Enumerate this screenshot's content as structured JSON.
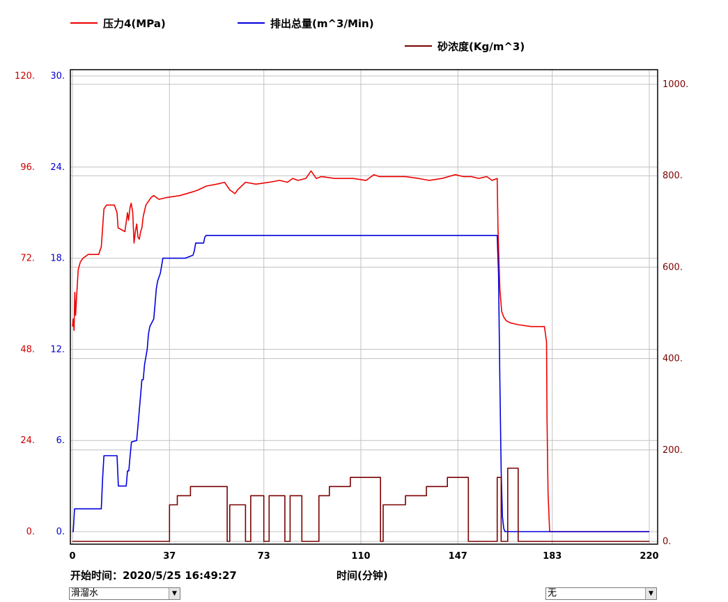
{
  "colors": {
    "pressure": "#ee0000",
    "flow": "#0000dd",
    "sand": "#7a0000",
    "grid": "#c0c0c0",
    "frame": "#000000"
  },
  "legend": {
    "pressure": "压力4(MPa)",
    "flow": "排出总量(m^3/Min)",
    "sand": "砂浓度(Kg/m^3)"
  },
  "info": {
    "start_time": "开始时间：2020/5/25 16:49:27",
    "x_axis_title": "时间(分钟)"
  },
  "controls": {
    "fluid_select": "滑溜水",
    "right_select": "无"
  },
  "chart_data": {
    "type": "line",
    "xlabel": "时间(分钟)",
    "xlim": [
      0,
      220
    ],
    "x_ticks": [
      "0",
      "37",
      "73",
      "110",
      "147",
      "183",
      "220"
    ],
    "axes": {
      "left_pressure": {
        "ylim": [
          0,
          120
        ],
        "ticks": [
          "0.",
          "24.",
          "48.",
          "72.",
          "96.",
          "120."
        ]
      },
      "left_flow": {
        "ylim": [
          0,
          30
        ],
        "ticks": [
          "0.",
          "6.",
          "12.",
          "18.",
          "24.",
          "30."
        ]
      },
      "right_sand": {
        "ylim": [
          0,
          1000
        ],
        "ticks": [
          "0.",
          "200.",
          "400.",
          "600.",
          "800.",
          "1000."
        ]
      }
    },
    "grid": true,
    "legend_position": "top",
    "series": [
      {
        "name": "压力4(MPa)",
        "axis": "left_pressure",
        "x": [
          0,
          0.3,
          0.6,
          0.9,
          1.2,
          1.6,
          2.2,
          3,
          4,
          6,
          8,
          10,
          11,
          12,
          13,
          16,
          17,
          17.4,
          20,
          21,
          21.4,
          22,
          22.4,
          23,
          23.3,
          23.5,
          24,
          24.5,
          25,
          25.5,
          26,
          26.5,
          27,
          28,
          29,
          30,
          31,
          33,
          36,
          41,
          46,
          48,
          51,
          55,
          58,
          60,
          62,
          63,
          66,
          70,
          75,
          79,
          82,
          84,
          86,
          89,
          91,
          93,
          95,
          100,
          107,
          112,
          115,
          117,
          120,
          127,
          132,
          136,
          141,
          146,
          149,
          152,
          155,
          158,
          160,
          162,
          162.3,
          163,
          163.7,
          164.5,
          165.5,
          167,
          170,
          175,
          180,
          180.8,
          181,
          181.4,
          182,
          182.7,
          183,
          200,
          220
        ],
        "y": [
          54,
          56,
          53,
          63,
          57,
          62,
          69,
          71,
          72,
          73,
          73,
          73,
          75,
          85,
          86,
          86,
          84,
          80,
          79,
          84,
          82,
          85.5,
          86.5,
          84,
          79,
          76,
          79,
          81,
          77.5,
          77,
          79,
          80,
          83,
          86,
          87,
          88,
          88.5,
          87.5,
          88,
          88.5,
          89.5,
          90,
          91,
          91.5,
          92,
          90,
          89,
          90,
          92,
          91.5,
          92,
          92.5,
          92,
          93,
          92.5,
          93,
          95,
          93,
          93.5,
          93,
          93,
          92.5,
          94,
          93.5,
          93.5,
          93.5,
          93,
          92.5,
          93,
          94,
          93.5,
          93.5,
          93,
          93.5,
          92.5,
          93,
          80,
          64,
          58,
          56.5,
          55.5,
          55,
          54.5,
          54,
          54,
          50,
          30,
          10,
          0,
          0,
          0,
          0,
          0
        ]
      },
      {
        "name": "排出总量(m^3/Min)",
        "axis": "left_flow",
        "x": [
          0,
          0.3,
          0.8,
          1,
          1.5,
          11,
          11.5,
          12,
          12.5,
          17,
          17.5,
          20.5,
          21,
          21.5,
          22,
          22.5,
          24.5,
          25,
          25.5,
          26.5,
          27,
          27.5,
          28.5,
          29,
          29.5,
          31,
          31.5,
          32,
          32.5,
          33.5,
          34,
          34.5,
          35.5,
          36,
          36.5,
          37,
          37.5,
          43,
          46,
          46.5,
          47,
          50,
          50.5,
          51,
          55,
          100,
          160,
          162,
          162.5,
          163,
          163.5,
          164,
          164.5,
          165,
          183,
          220
        ],
        "y": [
          0,
          0,
          1.5,
          1.5,
          1.5,
          1.5,
          3.5,
          5,
          5,
          5,
          3,
          3,
          4,
          4,
          5,
          5.9,
          6,
          7,
          8,
          10,
          10,
          11,
          12,
          13,
          13.5,
          14,
          15,
          16,
          16.5,
          17,
          17.5,
          18,
          18,
          18,
          18,
          18,
          18,
          18,
          18.2,
          18.5,
          19,
          19,
          19.4,
          19.5,
          19.5,
          19.5,
          19.5,
          19.5,
          17,
          10,
          4,
          1,
          0.2,
          0,
          0,
          0
        ]
      },
      {
        "name": "砂浓度(Kg/m^3)",
        "axis": "right_sand",
        "x": [
          0,
          37,
          37,
          40,
          40,
          45,
          45,
          59,
          59,
          60,
          60,
          66,
          66,
          68,
          68,
          73,
          73,
          75,
          75,
          81,
          81,
          83,
          83,
          87.5,
          87.5,
          94,
          94,
          98,
          98,
          106,
          106,
          117.5,
          117.5,
          118.5,
          118.5,
          127,
          127,
          135,
          135,
          143,
          143,
          151,
          151,
          162,
          162,
          163.5,
          163.5,
          166,
          166,
          170,
          170,
          220
        ],
        "y": [
          0,
          0,
          80,
          80,
          100,
          100,
          120,
          120,
          0,
          0,
          80,
          80,
          0,
          0,
          100,
          100,
          0,
          0,
          100,
          100,
          0,
          0,
          100,
          100,
          0,
          0,
          100,
          100,
          120,
          120,
          140,
          140,
          0,
          0,
          80,
          80,
          100,
          100,
          120,
          120,
          140,
          140,
          0,
          0,
          140,
          140,
          0,
          0,
          160,
          160,
          0,
          0
        ]
      }
    ]
  }
}
